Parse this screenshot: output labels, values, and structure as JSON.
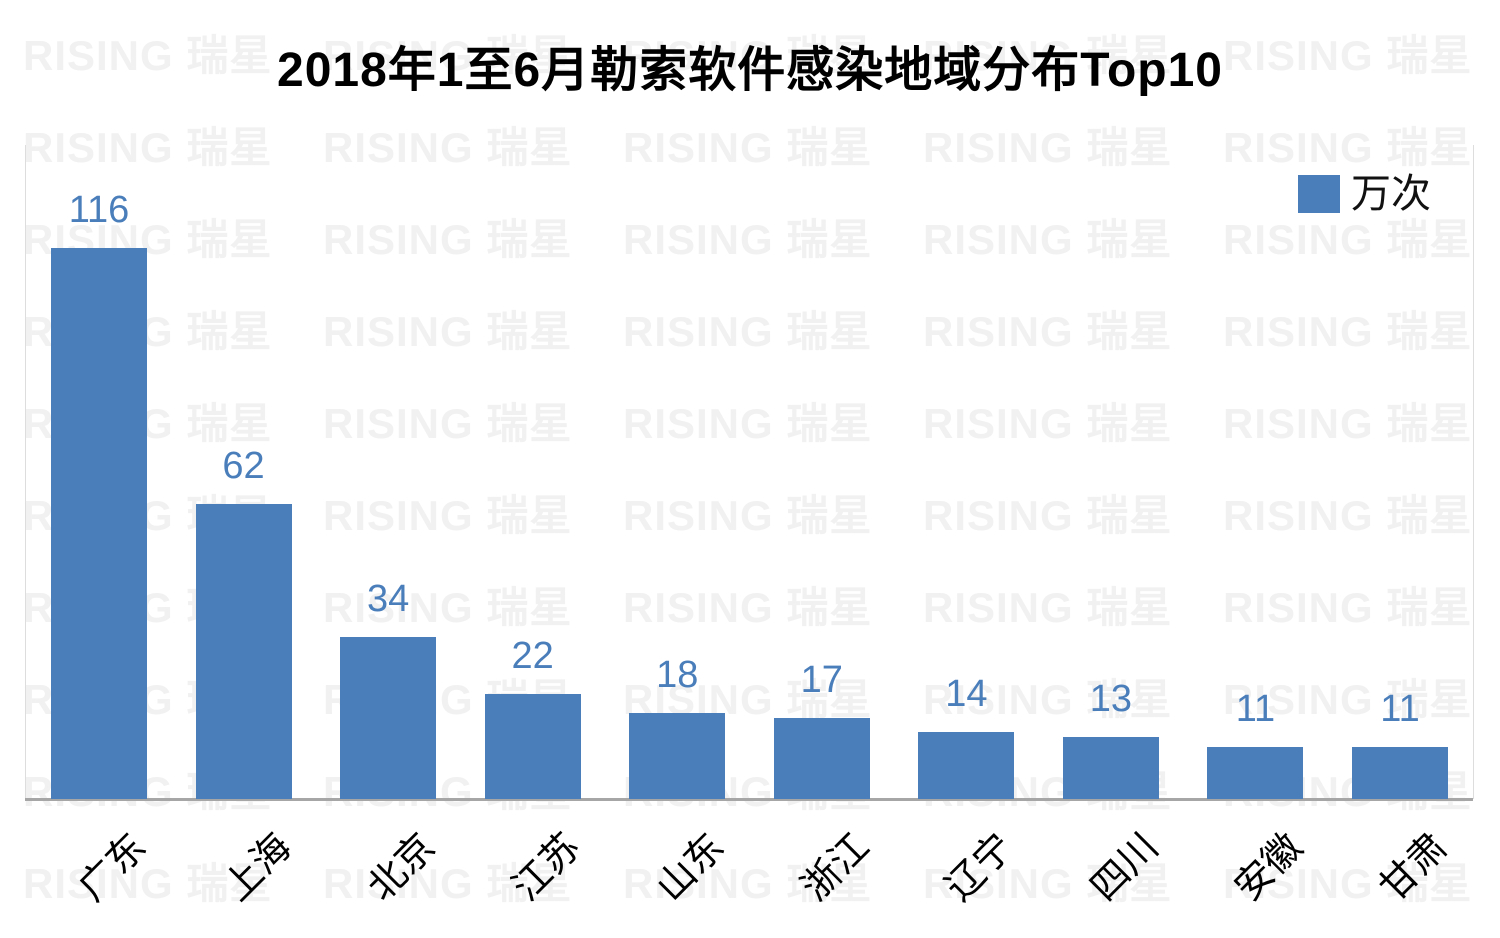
{
  "title": "2018年1至6月勒索软件感染地域分布Top10",
  "legend": {
    "label": "万次",
    "color": "#4a7ebb"
  },
  "watermark": {
    "text": "RISING 瑞星"
  },
  "chart_data": {
    "type": "bar",
    "title": "2018年1至6月勒索软件感染地域分布Top10",
    "categories": [
      "广东",
      "上海",
      "北京",
      "江苏",
      "山东",
      "浙江",
      "辽宁",
      "四川",
      "安徽",
      "甘肃"
    ],
    "values": [
      116,
      62,
      34,
      22,
      18,
      17,
      14,
      13,
      11,
      11
    ],
    "series": [
      {
        "name": "万次",
        "values": [
          116,
          62,
          34,
          22,
          18,
          17,
          14,
          13,
          11,
          11
        ]
      }
    ],
    "xlabel": "",
    "ylabel": "",
    "ylim": [
      0,
      122
    ],
    "grid": false,
    "y_axis_ticks_shown": false,
    "value_labels_shown": true,
    "legend_position": "top-right",
    "bar_color": "#4a7ebb",
    "value_label_color": "#4a7ebb",
    "axis_line_color": "#a6a6a6",
    "category_label_rotation_deg": -45
  }
}
